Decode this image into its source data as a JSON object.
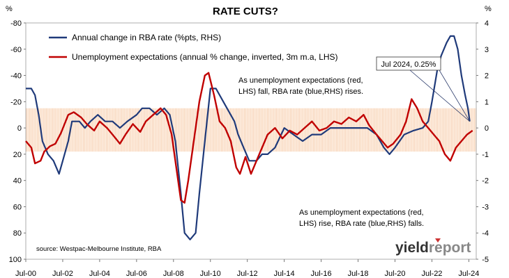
{
  "chart_data": {
    "type": "line",
    "title": "RATE CUTS?",
    "left_unit": "%",
    "right_unit": "%",
    "xlim": [
      2000.5,
      2024.9
    ],
    "ylim_left": [
      100,
      -80
    ],
    "ylim_right": [
      -5,
      4
    ],
    "left_axis_inverted": true,
    "left_ticks": [
      -80,
      -60,
      -40,
      -20,
      0,
      20,
      40,
      60,
      80,
      100
    ],
    "right_ticks": [
      4,
      3,
      2,
      1,
      0,
      -1,
      -2,
      -3,
      -4,
      -5
    ],
    "x_ticks": [
      {
        "x": 2000.5,
        "label": "Jul-00"
      },
      {
        "x": 2002.5,
        "label": "Jul-02"
      },
      {
        "x": 2004.5,
        "label": "Jul-04"
      },
      {
        "x": 2006.5,
        "label": "Jul-06"
      },
      {
        "x": 2008.5,
        "label": "Jul-08"
      },
      {
        "x": 2010.5,
        "label": "Jul-10"
      },
      {
        "x": 2012.5,
        "label": "Jul-12"
      },
      {
        "x": 2014.5,
        "label": "Jul-14"
      },
      {
        "x": 2016.5,
        "label": "Jul-16"
      },
      {
        "x": 2018.5,
        "label": "Jul-18"
      },
      {
        "x": 2020.5,
        "label": "Jul-20"
      },
      {
        "x": 2022.5,
        "label": "Jul-22"
      },
      {
        "x": 2024.5,
        "label": "Jul-24"
      }
    ],
    "shaded_band_left": [
      -15,
      18
    ],
    "legend_position": "top-left",
    "series": [
      {
        "name": "Annual change in RBA rate (%pts, RHS)",
        "axis": "right",
        "color": "#1f3a7a",
        "points": [
          [
            2000.5,
            1.5
          ],
          [
            2000.8,
            1.5
          ],
          [
            2001.0,
            1.25
          ],
          [
            2001.2,
            0.5
          ],
          [
            2001.4,
            -0.5
          ],
          [
            2001.7,
            -1.0
          ],
          [
            2002.0,
            -1.25
          ],
          [
            2002.3,
            -1.75
          ],
          [
            2002.5,
            -1.25
          ],
          [
            2002.8,
            -0.5
          ],
          [
            2003.0,
            0.25
          ],
          [
            2003.4,
            0.25
          ],
          [
            2003.7,
            0.0
          ],
          [
            2004.0,
            0.25
          ],
          [
            2004.4,
            0.5
          ],
          [
            2004.8,
            0.25
          ],
          [
            2005.2,
            0.25
          ],
          [
            2005.6,
            0.0
          ],
          [
            2006.0,
            0.25
          ],
          [
            2006.5,
            0.5
          ],
          [
            2006.8,
            0.75
          ],
          [
            2007.2,
            0.75
          ],
          [
            2007.6,
            0.5
          ],
          [
            2008.0,
            0.75
          ],
          [
            2008.3,
            0.5
          ],
          [
            2008.6,
            -0.5
          ],
          [
            2008.9,
            -2.5
          ],
          [
            2009.1,
            -4.0
          ],
          [
            2009.4,
            -4.25
          ],
          [
            2009.7,
            -4.0
          ],
          [
            2009.9,
            -2.5
          ],
          [
            2010.2,
            -0.5
          ],
          [
            2010.5,
            1.5
          ],
          [
            2010.8,
            1.5
          ],
          [
            2011.0,
            1.25
          ],
          [
            2011.4,
            0.75
          ],
          [
            2011.8,
            0.25
          ],
          [
            2012.0,
            -0.25
          ],
          [
            2012.3,
            -0.75
          ],
          [
            2012.6,
            -1.25
          ],
          [
            2013.0,
            -1.25
          ],
          [
            2013.3,
            -1.0
          ],
          [
            2013.6,
            -1.0
          ],
          [
            2014.0,
            -0.75
          ],
          [
            2014.5,
            0.0
          ],
          [
            2015.0,
            -0.25
          ],
          [
            2015.5,
            -0.5
          ],
          [
            2016.0,
            -0.25
          ],
          [
            2016.5,
            -0.25
          ],
          [
            2017.0,
            0.0
          ],
          [
            2018.0,
            0.0
          ],
          [
            2019.0,
            0.0
          ],
          [
            2019.5,
            -0.25
          ],
          [
            2019.9,
            -0.75
          ],
          [
            2020.2,
            -1.0
          ],
          [
            2020.5,
            -0.75
          ],
          [
            2021.0,
            -0.25
          ],
          [
            2021.5,
            -0.1
          ],
          [
            2022.0,
            0.0
          ],
          [
            2022.3,
            0.25
          ],
          [
            2022.5,
            1.0
          ],
          [
            2022.8,
            2.25
          ],
          [
            2023.0,
            2.75
          ],
          [
            2023.3,
            3.25
          ],
          [
            2023.5,
            3.5
          ],
          [
            2023.7,
            3.5
          ],
          [
            2023.9,
            3.0
          ],
          [
            2024.1,
            2.0
          ],
          [
            2024.3,
            1.25
          ],
          [
            2024.45,
            0.75
          ],
          [
            2024.55,
            0.25
          ]
        ]
      },
      {
        "name": "Unemployment expectations (annual % change, inverted, 3m m.a, LHS)",
        "axis": "left",
        "color": "#c00000",
        "points": [
          [
            2000.5,
            10
          ],
          [
            2000.8,
            15
          ],
          [
            2001.0,
            27
          ],
          [
            2001.3,
            25
          ],
          [
            2001.5,
            18
          ],
          [
            2001.8,
            14
          ],
          [
            2002.1,
            12
          ],
          [
            2002.4,
            4
          ],
          [
            2002.8,
            -10
          ],
          [
            2003.1,
            -12
          ],
          [
            2003.5,
            -8
          ],
          [
            2003.8,
            -3
          ],
          [
            2004.2,
            2
          ],
          [
            2004.5,
            -5
          ],
          [
            2004.9,
            0
          ],
          [
            2005.2,
            5
          ],
          [
            2005.6,
            12
          ],
          [
            2005.9,
            5
          ],
          [
            2006.3,
            -3
          ],
          [
            2006.7,
            3
          ],
          [
            2007.0,
            -5
          ],
          [
            2007.4,
            -10
          ],
          [
            2007.8,
            -15
          ],
          [
            2008.1,
            -10
          ],
          [
            2008.4,
            5
          ],
          [
            2008.7,
            35
          ],
          [
            2008.9,
            55
          ],
          [
            2009.1,
            57
          ],
          [
            2009.3,
            40
          ],
          [
            2009.6,
            10
          ],
          [
            2009.9,
            -20
          ],
          [
            2010.2,
            -40
          ],
          [
            2010.4,
            -42
          ],
          [
            2010.7,
            -25
          ],
          [
            2011.0,
            -5
          ],
          [
            2011.3,
            0
          ],
          [
            2011.6,
            10
          ],
          [
            2011.9,
            30
          ],
          [
            2012.1,
            35
          ],
          [
            2012.4,
            22
          ],
          [
            2012.7,
            35
          ],
          [
            2013.0,
            25
          ],
          [
            2013.3,
            15
          ],
          [
            2013.6,
            5
          ],
          [
            2014.0,
            0
          ],
          [
            2014.4,
            8
          ],
          [
            2014.8,
            2
          ],
          [
            2015.2,
            5
          ],
          [
            2015.6,
            0
          ],
          [
            2016.0,
            -5
          ],
          [
            2016.4,
            2
          ],
          [
            2016.8,
            0
          ],
          [
            2017.2,
            -5
          ],
          [
            2017.6,
            -3
          ],
          [
            2018.0,
            -8
          ],
          [
            2018.4,
            -5
          ],
          [
            2018.8,
            -10
          ],
          [
            2019.1,
            -2
          ],
          [
            2019.5,
            5
          ],
          [
            2019.8,
            10
          ],
          [
            2020.1,
            15
          ],
          [
            2020.4,
            12
          ],
          [
            2020.8,
            5
          ],
          [
            2021.1,
            -5
          ],
          [
            2021.4,
            -22
          ],
          [
            2021.7,
            -15
          ],
          [
            2022.0,
            -5
          ],
          [
            2022.3,
            0
          ],
          [
            2022.6,
            5
          ],
          [
            2022.9,
            10
          ],
          [
            2023.2,
            20
          ],
          [
            2023.5,
            25
          ],
          [
            2023.8,
            15
          ],
          [
            2024.1,
            10
          ],
          [
            2024.4,
            5
          ],
          [
            2024.7,
            2
          ]
        ]
      }
    ],
    "annotations": {
      "callout": "Jul 2024, 0.25%",
      "note_top": [
        "As unemployment expectations (red,",
        "LHS) fall, RBA rate (blue,RHS) rises."
      ],
      "note_bottom": [
        "As unemployment expectations (red,",
        "LHS) rise, RBA rate (blue,RHS) falls."
      ],
      "source": "source: Westpac-Melbourne Institute, RBA"
    }
  },
  "branding": {
    "logo_part1": "yield",
    "logo_part2": "report",
    "color1": "#333333",
    "color2": "#888888",
    "marker_color": "#cc3333"
  }
}
